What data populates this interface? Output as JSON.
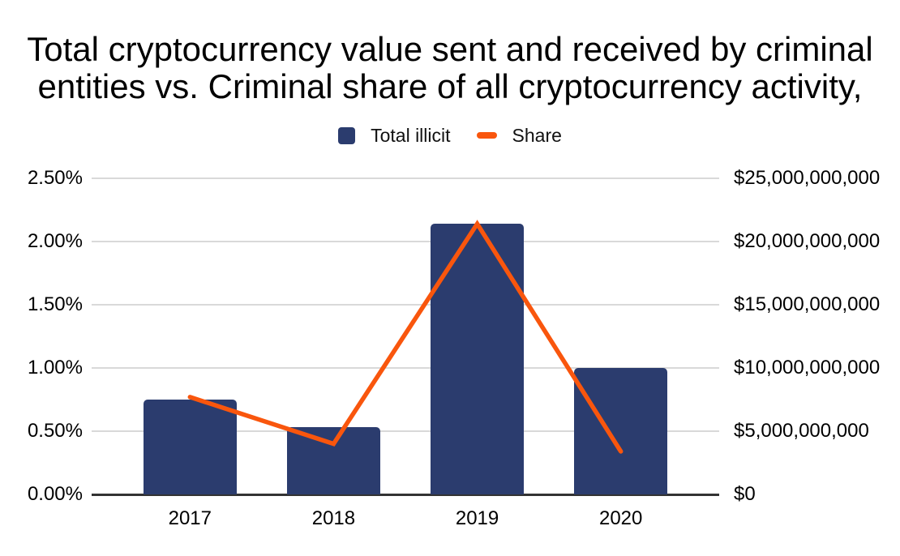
{
  "title_lines": [
    "Total cryptocurrency value sent and received by criminal",
    "entities vs. Criminal share of all cryptocurrency activity,"
  ],
  "chart_data": {
    "type": "combo-bar-line",
    "categories": [
      "2017",
      "2018",
      "2019",
      "2020"
    ],
    "series": [
      {
        "name": "Total illicit",
        "type": "bar",
        "axis": "right",
        "color": "#2B3C6E",
        "values": [
          7500000000,
          5300000000,
          21400000000,
          10000000000
        ]
      },
      {
        "name": "Share",
        "type": "line",
        "axis": "left",
        "color": "#F9560D",
        "unit": "%",
        "values": [
          0.77,
          0.4,
          2.14,
          0.34
        ]
      }
    ],
    "left_axis": {
      "min": 0,
      "max": 2.5,
      "tick_step": 0.5,
      "tick_labels": [
        "0.00%",
        "0.50%",
        "1.00%",
        "1.50%",
        "2.00%",
        "2.50%"
      ]
    },
    "right_axis": {
      "min": 0,
      "max": 25000000000,
      "tick_step": 5000000000,
      "tick_labels": [
        "$0",
        "$5,000,000,000",
        "$10,000,000,000",
        "$15,000,000,000",
        "$20,000,000,000",
        "$25,000,000,000"
      ]
    },
    "grid": true,
    "legend_position": "top"
  },
  "colors": {
    "bar": "#2B3C6E",
    "line": "#F9560D",
    "gridline": "#D9D9D9",
    "axis_line": "#333333",
    "text": "#000000",
    "background": "#FFFFFF"
  }
}
